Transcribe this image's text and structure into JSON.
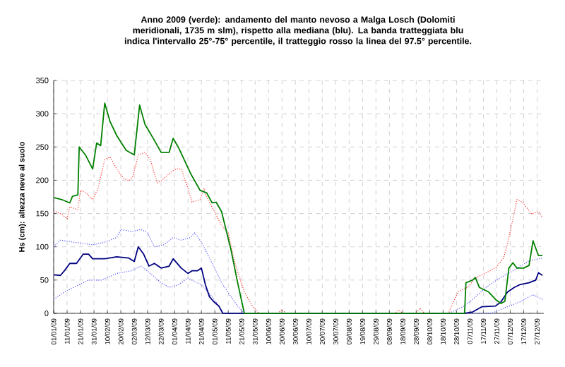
{
  "chart_data": {
    "type": "line",
    "title": "Anno 2009 (verde): andamento del manto nevoso a Malga Losch (Dolomiti meridionali, 1735 m slm), rispetto alla mediana (blu). La banda tratteggiata blu indica l'intervallo 25°-75° percentile, il tratteggio rosso la linea del 97.5° percentile.",
    "ylabel": "Hs (cm): altezza neve al suolo",
    "xlim": [
      "2009-01-01",
      "2010-01-01"
    ],
    "ylim": [
      0,
      350
    ],
    "yticks": [
      0,
      50,
      100,
      150,
      200,
      250,
      300,
      350
    ],
    "xticks": [
      {
        "value": "2009-01-01",
        "label": "01/01/09"
      },
      {
        "value": "2009-01-11",
        "label": "11/01/09"
      },
      {
        "value": "2009-01-21",
        "label": "21/01/09"
      },
      {
        "value": "2009-01-31",
        "label": "31/01/09"
      },
      {
        "value": "2009-02-10",
        "label": "10/02/09"
      },
      {
        "value": "2009-02-20",
        "label": "20/02/09"
      },
      {
        "value": "2009-03-02",
        "label": "02/03/09"
      },
      {
        "value": "2009-03-12",
        "label": "12/03/09"
      },
      {
        "value": "2009-03-22",
        "label": "22/03/09"
      },
      {
        "value": "2009-04-01",
        "label": "01/04/09"
      },
      {
        "value": "2009-04-11",
        "label": "11/04/09"
      },
      {
        "value": "2009-04-21",
        "label": "21/04/09"
      },
      {
        "value": "2009-05-01",
        "label": "01/05/09"
      },
      {
        "value": "2009-05-11",
        "label": "11/05/09"
      },
      {
        "value": "2009-05-21",
        "label": "21/05/09"
      },
      {
        "value": "2009-05-31",
        "label": "31/05/09"
      },
      {
        "value": "2009-06-10",
        "label": "10/06/09"
      },
      {
        "value": "2009-06-20",
        "label": "20/06/09"
      },
      {
        "value": "2009-06-30",
        "label": "30/06/09"
      },
      {
        "value": "2009-07-10",
        "label": "10/07/09"
      },
      {
        "value": "2009-07-20",
        "label": "20/07/09"
      },
      {
        "value": "2009-07-30",
        "label": "30/07/09"
      },
      {
        "value": "2009-08-09",
        "label": "09/08/09"
      },
      {
        "value": "2009-08-19",
        "label": "19/08/09"
      },
      {
        "value": "2009-08-29",
        "label": "29/08/09"
      },
      {
        "value": "2009-09-08",
        "label": "08/09/09"
      },
      {
        "value": "2009-09-18",
        "label": "18/09/09"
      },
      {
        "value": "2009-09-28",
        "label": "28/09/09"
      },
      {
        "value": "2009-10-08",
        "label": "08/10/09"
      },
      {
        "value": "2009-10-18",
        "label": "18/10/09"
      },
      {
        "value": "2009-10-28",
        "label": "28/10/09"
      },
      {
        "value": "2009-11-07",
        "label": "07/11/09"
      },
      {
        "value": "2009-11-17",
        "label": "17/11/09"
      },
      {
        "value": "2009-11-27",
        "label": "27/11/09"
      },
      {
        "value": "2009-12-07",
        "label": "07/12/09"
      },
      {
        "value": "2009-12-17",
        "label": "17/12/09"
      },
      {
        "value": "2009-12-27",
        "label": "27/12/09"
      }
    ],
    "grid": true,
    "marker": "none",
    "series": [
      {
        "color": "#ff3333",
        "line_style": "dotted",
        "x": [
          "2009-01-01",
          "2009-01-07",
          "2009-01-11",
          "2009-01-13",
          "2009-01-19",
          "2009-01-21",
          "2009-01-25",
          "2009-01-30",
          "2009-02-03",
          "2009-02-08",
          "2009-02-12",
          "2009-02-17",
          "2009-02-22",
          "2009-02-26",
          "2009-03-01",
          "2009-03-05",
          "2009-03-10",
          "2009-03-14",
          "2009-03-19",
          "2009-03-22",
          "2009-03-28",
          "2009-04-02",
          "2009-04-06",
          "2009-04-11",
          "2009-04-14",
          "2009-04-20",
          "2009-04-23",
          "2009-04-25",
          "2009-04-30",
          "2009-05-06",
          "2009-05-11",
          "2009-05-16",
          "2009-05-23",
          "2009-05-29",
          "2009-06-03",
          "2009-06-17",
          "2009-06-20",
          "2009-06-23",
          "2009-09-12",
          "2009-09-15",
          "2009-09-18",
          "2009-09-28",
          "2009-10-01",
          "2009-10-04",
          "2009-10-22",
          "2009-10-29",
          "2009-11-05",
          "2009-11-12",
          "2009-11-19",
          "2009-11-26",
          "2009-12-02",
          "2009-12-05",
          "2009-12-09",
          "2009-12-12",
          "2009-12-16",
          "2009-12-23",
          "2009-12-28",
          "2009-12-31"
        ],
        "values": [
          154,
          149,
          142,
          160,
          156,
          185,
          181,
          171,
          188,
          231,
          235,
          217,
          203,
          199,
          206,
          238,
          242,
          231,
          196,
          199,
          210,
          217,
          217,
          188,
          167,
          171,
          188,
          174,
          156,
          132,
          121,
          75,
          32,
          11,
          0,
          0,
          6,
          0,
          0,
          5,
          0,
          0,
          8,
          0,
          0,
          32,
          39,
          54,
          61,
          68,
          83,
          105,
          142,
          171,
          167,
          149,
          153,
          144
        ]
      },
      {
        "color": "#5555ff",
        "line_style": "dotted",
        "x": [
          "2009-01-01",
          "2009-01-06",
          "2009-01-16",
          "2009-01-30",
          "2009-02-08",
          "2009-02-17",
          "2009-02-20",
          "2009-02-28",
          "2009-03-07",
          "2009-03-12",
          "2009-03-17",
          "2009-03-24",
          "2009-03-31",
          "2009-04-06",
          "2009-04-13",
          "2009-04-16",
          "2009-04-21",
          "2009-04-29",
          "2009-05-06",
          "2009-05-13",
          "2009-05-18",
          "2009-05-23",
          "2009-10-22",
          "2009-11-02",
          "2009-11-09",
          "2009-11-19",
          "2009-11-30",
          "2009-12-10",
          "2009-12-21",
          "2009-12-31"
        ],
        "values": [
          100,
          110,
          107,
          103,
          107,
          114,
          126,
          123,
          126,
          121,
          100,
          103,
          114,
          110,
          114,
          121,
          107,
          75,
          46,
          25,
          11,
          0,
          0,
          10,
          21,
          39,
          54,
          65,
          79,
          83
        ]
      },
      {
        "color": "#5555ff",
        "line_style": "dotted",
        "x": [
          "2009-01-01",
          "2009-01-09",
          "2009-01-16",
          "2009-01-27",
          "2009-02-06",
          "2009-02-17",
          "2009-02-28",
          "2009-03-07",
          "2009-03-14",
          "2009-03-22",
          "2009-03-28",
          "2009-04-04",
          "2009-04-11",
          "2009-04-14",
          "2009-04-21",
          "2009-04-29",
          "2009-05-04",
          "2009-05-07",
          "2009-11-23",
          "2009-11-30",
          "2009-12-14",
          "2009-12-24",
          "2009-12-31"
        ],
        "values": [
          21,
          32,
          39,
          50,
          50,
          60,
          64,
          71,
          60,
          46,
          39,
          43,
          53,
          50,
          43,
          25,
          11,
          0,
          0,
          6,
          17,
          28,
          21
        ]
      },
      {
        "color": "#000080",
        "line_style": "solid",
        "x": [
          "2009-01-01",
          "2009-01-06",
          "2009-01-09",
          "2009-01-13",
          "2009-01-18",
          "2009-01-23",
          "2009-01-27",
          "2009-01-30",
          "2009-02-08",
          "2009-02-17",
          "2009-02-26",
          "2009-03-02",
          "2009-03-05",
          "2009-03-09",
          "2009-03-13",
          "2009-03-17",
          "2009-03-22",
          "2009-03-28",
          "2009-03-31",
          "2009-04-06",
          "2009-04-11",
          "2009-04-14",
          "2009-04-18",
          "2009-04-21",
          "2009-04-24",
          "2009-04-27",
          "2009-04-30",
          "2009-05-04",
          "2009-05-07",
          "2009-11-03",
          "2009-11-09",
          "2009-11-16",
          "2009-11-26",
          "2009-11-30",
          "2009-12-05",
          "2009-12-10",
          "2009-12-14",
          "2009-12-21",
          "2009-12-26",
          "2009-12-28",
          "2009-12-31"
        ],
        "values": [
          58,
          57,
          64,
          75,
          75,
          89,
          89,
          82,
          82,
          85,
          83,
          78,
          100,
          89,
          71,
          75,
          68,
          71,
          82,
          68,
          60,
          64,
          64,
          68,
          43,
          25,
          18,
          11,
          0,
          0,
          2,
          10,
          11,
          17,
          32,
          39,
          43,
          46,
          50,
          61,
          57
        ]
      },
      {
        "color": "#008000",
        "line_style": "solid",
        "x": [
          "2009-01-01",
          "2009-01-07",
          "2009-01-13",
          "2009-01-15",
          "2009-01-19",
          "2009-01-20",
          "2009-01-25",
          "2009-01-30",
          "2009-02-02",
          "2009-02-05",
          "2009-02-08",
          "2009-02-12",
          "2009-02-17",
          "2009-02-24",
          "2009-03-02",
          "2009-03-06",
          "2009-03-10",
          "2009-03-17",
          "2009-03-22",
          "2009-03-28",
          "2009-03-31",
          "2009-04-04",
          "2009-04-13",
          "2009-04-20",
          "2009-04-25",
          "2009-04-29",
          "2009-05-02",
          "2009-05-06",
          "2009-05-13",
          "2009-05-18",
          "2009-05-23",
          "2009-11-03",
          "2009-11-04",
          "2009-11-09",
          "2009-11-11",
          "2009-11-14",
          "2009-11-21",
          "2009-11-26",
          "2009-11-30",
          "2009-12-03",
          "2009-12-06",
          "2009-12-09",
          "2009-12-12",
          "2009-12-17",
          "2009-12-21",
          "2009-12-24",
          "2009-12-28",
          "2009-12-31"
        ],
        "values": [
          174,
          171,
          166,
          176,
          178,
          250,
          237,
          217,
          256,
          252,
          316,
          288,
          267,
          245,
          238,
          313,
          284,
          260,
          242,
          242,
          263,
          249,
          210,
          185,
          181,
          166,
          167,
          153,
          96,
          46,
          0,
          0,
          46,
          50,
          54,
          39,
          32,
          21,
          15,
          18,
          68,
          76,
          68,
          68,
          72,
          109,
          87,
          87
        ]
      }
    ]
  }
}
